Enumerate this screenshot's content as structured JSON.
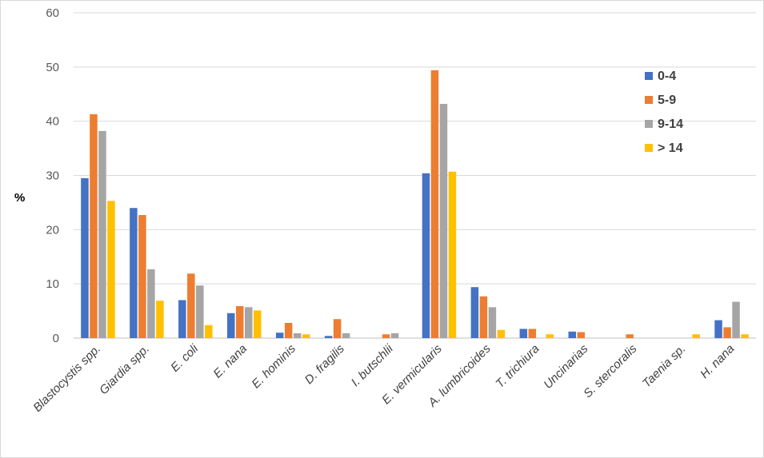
{
  "chart_data": {
    "type": "bar",
    "ylabel": "%",
    "xlabel": "",
    "ylim": [
      0,
      60
    ],
    "yticks": [
      0,
      10,
      20,
      30,
      40,
      50,
      60
    ],
    "grid": true,
    "legend_position": "top-right",
    "categories": [
      "Blastocystis spp.",
      "Giardia spp.",
      "E. coli",
      "E. nana",
      "E. hominis",
      "D. fragilis",
      "I. butschlii",
      "E. vermicularis",
      "A. lumbricoides",
      "T. trichiura",
      "Uncinarias",
      "S. stercoralis",
      "Taenia sp.",
      "H. nana"
    ],
    "series": [
      {
        "name": "0-4",
        "color": "#4472C4",
        "values": [
          29.5,
          24.0,
          7.0,
          4.6,
          1.0,
          0.4,
          0,
          30.4,
          9.4,
          1.7,
          1.2,
          0,
          0,
          3.3
        ]
      },
      {
        "name": "5-9",
        "color": "#ED7D31",
        "values": [
          41.3,
          22.7,
          11.9,
          5.9,
          2.8,
          3.5,
          0.7,
          49.4,
          7.7,
          1.7,
          1.1,
          0.7,
          0,
          2.0
        ]
      },
      {
        "name": "9-14",
        "color": "#A5A5A5",
        "values": [
          38.2,
          12.7,
          9.7,
          5.7,
          0.9,
          0.9,
          0.9,
          43.2,
          5.7,
          0,
          0,
          0,
          0,
          6.7
        ]
      },
      {
        "name": "> 14",
        "color": "#FFC000",
        "values": [
          25.3,
          6.9,
          2.4,
          5.1,
          0.7,
          0,
          0,
          30.7,
          1.5,
          0.7,
          0,
          0,
          0.7,
          0.7
        ]
      }
    ]
  }
}
